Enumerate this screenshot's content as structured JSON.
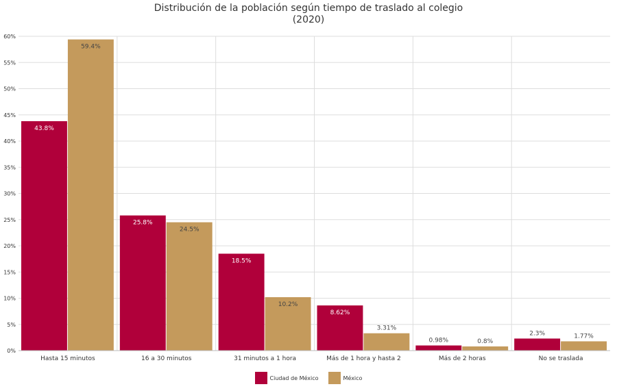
{
  "chart_data": {
    "type": "bar",
    "title": "Distribución de la población según tiempo de traslado al colegio",
    "subtitle": "(2020)",
    "categories": [
      "Hasta 15 minutos",
      "16 a 30 minutos",
      "31 minutos a 1 hora",
      "Más de 1 hora y hasta 2",
      "Más de 2 horas",
      "No se traslada"
    ],
    "series": [
      {
        "name": "Ciudad de México",
        "color": "#b0003a",
        "values": [
          43.8,
          25.8,
          18.5,
          8.62,
          0.98,
          2.3
        ],
        "labels": [
          "43.8%",
          "25.8%",
          "18.5%",
          "8.62%",
          "0.98%",
          "2.3%"
        ]
      },
      {
        "name": "México",
        "color": "#c49a5c",
        "values": [
          59.4,
          24.5,
          10.2,
          3.31,
          0.8,
          1.77
        ],
        "labels": [
          "59.4%",
          "24.5%",
          "10.2%",
          "3.31%",
          "0.8%",
          "1.77%"
        ]
      }
    ],
    "ylim": [
      0,
      60
    ],
    "yticks": [
      "0%",
      "5%",
      "10%",
      "15%",
      "20%",
      "25%",
      "30%",
      "35%",
      "40%",
      "45%",
      "50%",
      "55%",
      "60%"
    ],
    "grid": true,
    "legend_position": "bottom"
  }
}
